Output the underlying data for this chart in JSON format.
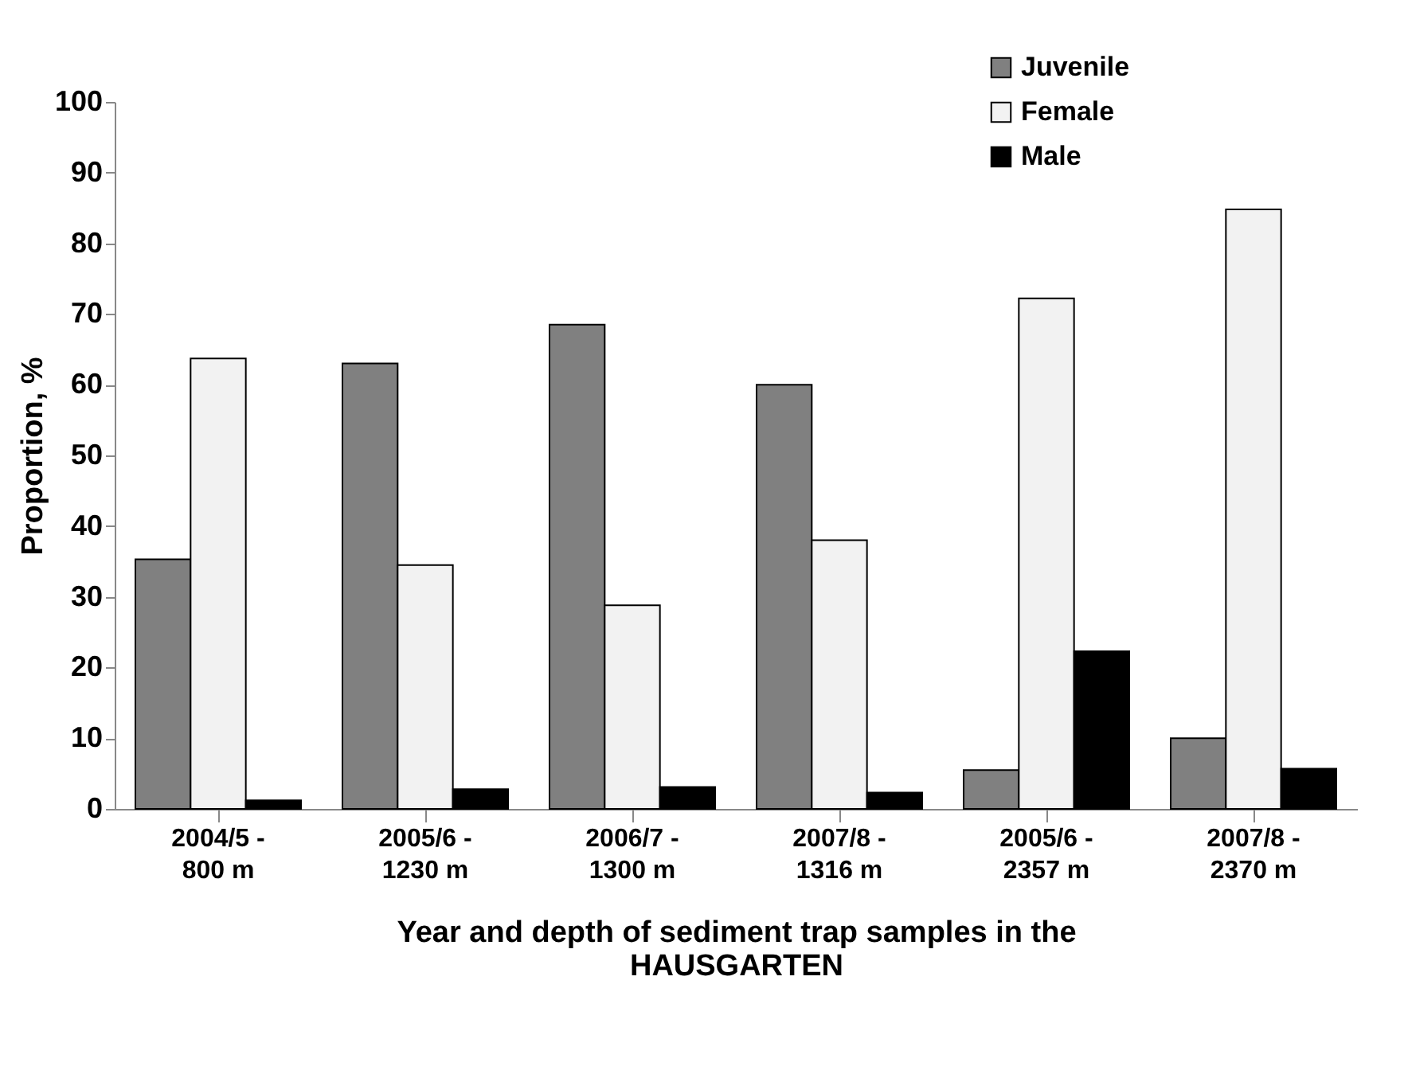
{
  "chart_data": {
    "type": "bar",
    "xlabel": "Year and depth of sediment trap samples in the HAUSGARTEN",
    "ylabel": "Proportion, %",
    "categories": [
      "2004/5 -\n800 m",
      "2005/6 -\n1230 m",
      "2006/7 -\n1300 m",
      "2007/8 -\n1316 m",
      "2005/6 -\n2357 m",
      "2007/8 -\n2370 m"
    ],
    "series": [
      {
        "name": "Juvenile",
        "color": "#808080",
        "values": [
          35.3,
          63,
          68.5,
          60,
          5.5,
          10
        ]
      },
      {
        "name": "Female",
        "color": "#f2f2f2",
        "values": [
          63.7,
          34.5,
          28.8,
          38,
          72.2,
          84.8
        ]
      },
      {
        "name": "Male",
        "color": "#000000",
        "values": [
          1.2,
          2.8,
          3.1,
          2.3,
          22.3,
          5.7
        ]
      }
    ],
    "ylim": [
      0,
      100
    ],
    "yticks": [
      0,
      10,
      20,
      30,
      40,
      50,
      60,
      70,
      80,
      90,
      100
    ],
    "grid": false,
    "legend": "top right"
  }
}
